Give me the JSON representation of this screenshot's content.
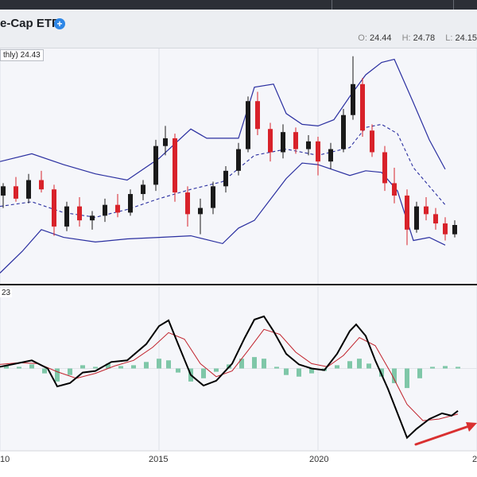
{
  "header": {
    "title": "e-Cap ETF",
    "plus_symbol": "+",
    "ohlc": [
      {
        "label": "O:",
        "value": "24.44"
      },
      {
        "label": "H:",
        "value": "24.78"
      },
      {
        "label": "L:",
        "value": "24.15"
      }
    ]
  },
  "colors": {
    "up": "#1a1a1a",
    "down": "#d8222a",
    "band": "#2a2fa0",
    "macd": "#000000",
    "signal": "#c0202a",
    "hist": "#7fc7a8",
    "arrow": "#d93030",
    "divider": "#111111"
  },
  "chart_data": [
    {
      "type": "candlestick",
      "price_label": "thly) 24.43",
      "x_range": [
        2010.0,
        2025.0
      ],
      "y_range": [
        17.5,
        32.7
      ],
      "overlays": [
        "bollinger_upper",
        "bollinger_middle_dashed",
        "bollinger_lower"
      ],
      "bollinger_upper": [
        [
          2010.0,
          25.4
        ],
        [
          2011.0,
          25.9
        ],
        [
          2012.0,
          25.2
        ],
        [
          2013.0,
          24.6
        ],
        [
          2014.0,
          24.2
        ],
        [
          2015.0,
          25.6
        ],
        [
          2016.0,
          27.5
        ],
        [
          2016.5,
          26.9
        ],
        [
          2017.5,
          26.9
        ],
        [
          2018.0,
          30.2
        ],
        [
          2018.6,
          30.4
        ],
        [
          2019.0,
          28.5
        ],
        [
          2019.5,
          27.8
        ],
        [
          2020.0,
          27.7
        ],
        [
          2020.5,
          28.1
        ],
        [
          2021.0,
          29.6
        ],
        [
          2021.5,
          31.0
        ],
        [
          2022.0,
          31.8
        ],
        [
          2022.4,
          32.0
        ],
        [
          2023.0,
          29.2
        ],
        [
          2023.5,
          26.8
        ],
        [
          2024.0,
          24.9
        ]
      ],
      "bollinger_middle": [
        [
          2010.0,
          22.5
        ],
        [
          2011.0,
          22.8
        ],
        [
          2012.0,
          22.1
        ],
        [
          2013.0,
          21.8
        ],
        [
          2014.0,
          22.3
        ],
        [
          2015.0,
          23.0
        ],
        [
          2016.0,
          23.6
        ],
        [
          2017.0,
          24.1
        ],
        [
          2018.0,
          25.8
        ],
        [
          2019.0,
          26.2
        ],
        [
          2020.0,
          25.8
        ],
        [
          2021.0,
          26.3
        ],
        [
          2021.5,
          27.6
        ],
        [
          2022.0,
          27.8
        ],
        [
          2022.5,
          27.2
        ],
        [
          2023.0,
          25.0
        ],
        [
          2023.5,
          23.8
        ],
        [
          2024.0,
          22.6
        ]
      ],
      "bollinger_lower": [
        [
          2010.0,
          18.2
        ],
        [
          2010.7,
          19.6
        ],
        [
          2011.3,
          21.0
        ],
        [
          2012.0,
          20.5
        ],
        [
          2013.0,
          20.2
        ],
        [
          2014.0,
          20.4
        ],
        [
          2015.0,
          20.5
        ],
        [
          2016.0,
          20.6
        ],
        [
          2017.0,
          20.1
        ],
        [
          2017.5,
          21.1
        ],
        [
          2018.0,
          21.6
        ],
        [
          2019.0,
          24.3
        ],
        [
          2019.5,
          25.3
        ],
        [
          2020.0,
          25.2
        ],
        [
          2021.0,
          24.5
        ],
        [
          2021.5,
          24.8
        ],
        [
          2022.0,
          24.7
        ],
        [
          2022.5,
          23.5
        ],
        [
          2023.0,
          20.3
        ],
        [
          2023.5,
          20.5
        ],
        [
          2024.0,
          20.0
        ]
      ],
      "candles": [
        {
          "t": 2010.1,
          "o": 23.2,
          "h": 24.0,
          "l": 22.4,
          "c": 23.8
        },
        {
          "t": 2010.5,
          "o": 23.8,
          "h": 24.4,
          "l": 22.8,
          "c": 23.0
        },
        {
          "t": 2010.9,
          "o": 23.0,
          "h": 24.6,
          "l": 22.7,
          "c": 24.2
        },
        {
          "t": 2011.3,
          "o": 24.2,
          "h": 24.8,
          "l": 23.4,
          "c": 23.6
        },
        {
          "t": 2011.7,
          "o": 23.6,
          "h": 23.9,
          "l": 20.6,
          "c": 21.2
        },
        {
          "t": 2012.1,
          "o": 21.2,
          "h": 22.8,
          "l": 20.9,
          "c": 22.5
        },
        {
          "t": 2012.5,
          "o": 22.5,
          "h": 23.1,
          "l": 21.2,
          "c": 21.6
        },
        {
          "t": 2012.9,
          "o": 21.6,
          "h": 22.2,
          "l": 21.0,
          "c": 21.9
        },
        {
          "t": 2013.3,
          "o": 21.9,
          "h": 23.0,
          "l": 21.5,
          "c": 22.6
        },
        {
          "t": 2013.7,
          "o": 22.6,
          "h": 23.3,
          "l": 21.8,
          "c": 22.1
        },
        {
          "t": 2014.1,
          "o": 22.1,
          "h": 23.6,
          "l": 21.9,
          "c": 23.3
        },
        {
          "t": 2014.5,
          "o": 23.3,
          "h": 24.2,
          "l": 22.9,
          "c": 23.9
        },
        {
          "t": 2014.9,
          "o": 23.9,
          "h": 26.8,
          "l": 23.5,
          "c": 26.4
        },
        {
          "t": 2015.2,
          "o": 26.4,
          "h": 27.7,
          "l": 25.8,
          "c": 26.9
        },
        {
          "t": 2015.5,
          "o": 26.9,
          "h": 27.2,
          "l": 22.8,
          "c": 23.4
        },
        {
          "t": 2015.9,
          "o": 23.4,
          "h": 23.8,
          "l": 21.2,
          "c": 22.0
        },
        {
          "t": 2016.3,
          "o": 22.0,
          "h": 23.0,
          "l": 20.7,
          "c": 22.4
        },
        {
          "t": 2016.7,
          "o": 22.4,
          "h": 24.1,
          "l": 22.0,
          "c": 23.8
        },
        {
          "t": 2017.1,
          "o": 23.8,
          "h": 25.1,
          "l": 23.4,
          "c": 24.8
        },
        {
          "t": 2017.5,
          "o": 24.8,
          "h": 26.6,
          "l": 24.5,
          "c": 26.2
        },
        {
          "t": 2017.8,
          "o": 26.2,
          "h": 29.6,
          "l": 26.0,
          "c": 29.3
        },
        {
          "t": 2018.1,
          "o": 29.3,
          "h": 29.9,
          "l": 27.1,
          "c": 27.5
        },
        {
          "t": 2018.5,
          "o": 27.5,
          "h": 27.9,
          "l": 25.4,
          "c": 26.0
        },
        {
          "t": 2018.9,
          "o": 26.0,
          "h": 27.8,
          "l": 25.6,
          "c": 27.3
        },
        {
          "t": 2019.3,
          "o": 27.3,
          "h": 27.6,
          "l": 25.9,
          "c": 26.2
        },
        {
          "t": 2019.7,
          "o": 26.2,
          "h": 27.1,
          "l": 25.8,
          "c": 26.7
        },
        {
          "t": 2020.0,
          "o": 26.7,
          "h": 27.0,
          "l": 24.5,
          "c": 25.4
        },
        {
          "t": 2020.4,
          "o": 25.4,
          "h": 26.6,
          "l": 24.9,
          "c": 26.2
        },
        {
          "t": 2020.8,
          "o": 26.2,
          "h": 28.8,
          "l": 26.0,
          "c": 28.4
        },
        {
          "t": 2021.1,
          "o": 28.4,
          "h": 32.2,
          "l": 28.1,
          "c": 30.4
        },
        {
          "t": 2021.4,
          "o": 30.4,
          "h": 30.8,
          "l": 27.0,
          "c": 27.4
        },
        {
          "t": 2021.7,
          "o": 27.4,
          "h": 27.8,
          "l": 25.7,
          "c": 26.0
        },
        {
          "t": 2022.1,
          "o": 26.0,
          "h": 26.4,
          "l": 23.5,
          "c": 24.0
        },
        {
          "t": 2022.4,
          "o": 24.0,
          "h": 25.0,
          "l": 22.7,
          "c": 23.2
        },
        {
          "t": 2022.8,
          "o": 23.2,
          "h": 23.6,
          "l": 20.0,
          "c": 21.0
        },
        {
          "t": 2023.1,
          "o": 21.0,
          "h": 22.8,
          "l": 20.8,
          "c": 22.5
        },
        {
          "t": 2023.4,
          "o": 22.5,
          "h": 23.1,
          "l": 21.6,
          "c": 22.0
        },
        {
          "t": 2023.7,
          "o": 22.0,
          "h": 22.4,
          "l": 21.0,
          "c": 21.4
        },
        {
          "t": 2024.0,
          "o": 21.4,
          "h": 21.8,
          "l": 20.3,
          "c": 20.7
        },
        {
          "t": 2024.3,
          "o": 20.7,
          "h": 21.6,
          "l": 20.5,
          "c": 21.3
        }
      ]
    },
    {
      "type": "macd",
      "label": "23",
      "x_range": [
        2010.0,
        2025.0
      ],
      "y_range": [
        -1.0,
        1.0
      ],
      "x_ticks": [
        "10",
        "2015",
        "2020",
        "2"
      ],
      "x_tick_values": [
        2010.0,
        2015.0,
        2020.0,
        2025.0
      ],
      "macd": [
        [
          2010.0,
          0.02
        ],
        [
          2010.5,
          0.06
        ],
        [
          2011.0,
          0.1
        ],
        [
          2011.5,
          0.0
        ],
        [
          2011.8,
          -0.22
        ],
        [
          2012.2,
          -0.18
        ],
        [
          2012.6,
          -0.05
        ],
        [
          2013.0,
          -0.03
        ],
        [
          2013.5,
          0.08
        ],
        [
          2014.0,
          0.1
        ],
        [
          2014.6,
          0.3
        ],
        [
          2015.0,
          0.52
        ],
        [
          2015.3,
          0.59
        ],
        [
          2015.6,
          0.3
        ],
        [
          2016.0,
          -0.08
        ],
        [
          2016.4,
          -0.21
        ],
        [
          2016.8,
          -0.15
        ],
        [
          2017.3,
          0.06
        ],
        [
          2017.7,
          0.38
        ],
        [
          2018.0,
          0.6
        ],
        [
          2018.3,
          0.64
        ],
        [
          2018.6,
          0.46
        ],
        [
          2019.0,
          0.18
        ],
        [
          2019.4,
          0.05
        ],
        [
          2019.8,
          0.0
        ],
        [
          2020.2,
          -0.02
        ],
        [
          2020.6,
          0.18
        ],
        [
          2021.0,
          0.46
        ],
        [
          2021.2,
          0.54
        ],
        [
          2021.5,
          0.4
        ],
        [
          2021.8,
          0.1
        ],
        [
          2022.2,
          -0.25
        ],
        [
          2022.5,
          -0.55
        ],
        [
          2022.8,
          -0.85
        ],
        [
          2023.1,
          -0.74
        ],
        [
          2023.5,
          -0.62
        ],
        [
          2023.9,
          -0.55
        ],
        [
          2024.2,
          -0.58
        ],
        [
          2024.4,
          -0.52
        ]
      ],
      "signal": [
        [
          2010.0,
          0.05
        ],
        [
          2010.6,
          0.07
        ],
        [
          2011.2,
          0.06
        ],
        [
          2011.8,
          -0.04
        ],
        [
          2012.4,
          -0.12
        ],
        [
          2013.0,
          -0.06
        ],
        [
          2013.6,
          0.03
        ],
        [
          2014.2,
          0.1
        ],
        [
          2014.8,
          0.26
        ],
        [
          2015.3,
          0.44
        ],
        [
          2015.8,
          0.36
        ],
        [
          2016.3,
          0.06
        ],
        [
          2016.8,
          -0.1
        ],
        [
          2017.3,
          -0.03
        ],
        [
          2017.8,
          0.22
        ],
        [
          2018.3,
          0.48
        ],
        [
          2018.8,
          0.42
        ],
        [
          2019.3,
          0.2
        ],
        [
          2019.8,
          0.06
        ],
        [
          2020.3,
          0.02
        ],
        [
          2020.8,
          0.16
        ],
        [
          2021.3,
          0.38
        ],
        [
          2021.8,
          0.28
        ],
        [
          2022.3,
          -0.06
        ],
        [
          2022.8,
          -0.44
        ],
        [
          2023.3,
          -0.64
        ],
        [
          2023.8,
          -0.62
        ],
        [
          2024.4,
          -0.56
        ]
      ],
      "histogram": [
        [
          2010.2,
          0.04
        ],
        [
          2010.6,
          0.02
        ],
        [
          2011.0,
          0.05
        ],
        [
          2011.4,
          -0.06
        ],
        [
          2011.8,
          -0.16
        ],
        [
          2012.2,
          -0.08
        ],
        [
          2012.6,
          0.04
        ],
        [
          2013.0,
          0.02
        ],
        [
          2013.4,
          0.06
        ],
        [
          2013.8,
          0.03
        ],
        [
          2014.2,
          0.04
        ],
        [
          2014.6,
          0.08
        ],
        [
          2015.0,
          0.12
        ],
        [
          2015.3,
          0.1
        ],
        [
          2015.6,
          -0.05
        ],
        [
          2016.0,
          -0.16
        ],
        [
          2016.4,
          -0.12
        ],
        [
          2016.8,
          -0.04
        ],
        [
          2017.2,
          0.05
        ],
        [
          2017.6,
          0.12
        ],
        [
          2018.0,
          0.14
        ],
        [
          2018.3,
          0.12
        ],
        [
          2018.7,
          0.02
        ],
        [
          2019.0,
          -0.08
        ],
        [
          2019.4,
          -0.1
        ],
        [
          2019.8,
          -0.06
        ],
        [
          2020.2,
          -0.03
        ],
        [
          2020.6,
          0.04
        ],
        [
          2021.0,
          0.09
        ],
        [
          2021.3,
          0.12
        ],
        [
          2021.6,
          0.06
        ],
        [
          2022.0,
          -0.1
        ],
        [
          2022.4,
          -0.18
        ],
        [
          2022.8,
          -0.24
        ],
        [
          2023.2,
          -0.12
        ],
        [
          2023.6,
          0.02
        ],
        [
          2024.0,
          0.03
        ],
        [
          2024.4,
          0.02
        ]
      ]
    }
  ]
}
